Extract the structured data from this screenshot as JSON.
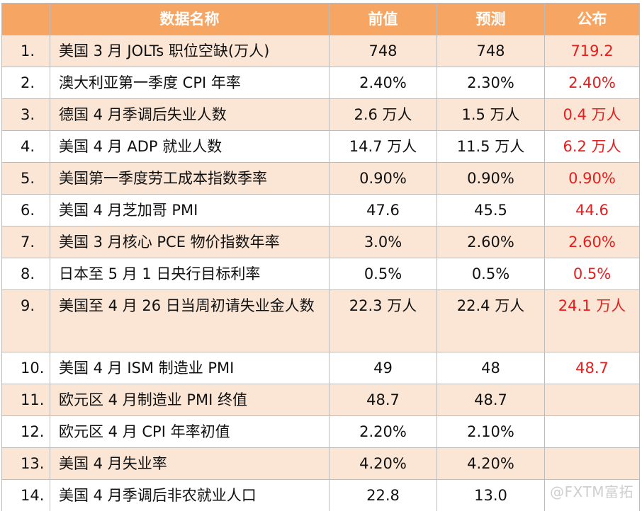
{
  "table": {
    "headers": [
      "",
      "数据名称",
      "前值",
      "预测",
      "公布"
    ],
    "rows": [
      {
        "index": "1.",
        "name": "美国 3 月 JOLTs 职位空缺(万人)",
        "previous": "748",
        "forecast": "748",
        "published": "719.2"
      },
      {
        "index": "2.",
        "name": "澳大利亚第一季度 CPI 年率",
        "previous": "2.40%",
        "forecast": "2.30%",
        "published": "2.40%"
      },
      {
        "index": "3.",
        "name": "德国 4 月季调后失业人数",
        "previous": "2.6 万人",
        "forecast": "1.5 万人",
        "published": "0.4 万人"
      },
      {
        "index": "4.",
        "name": "美国 4 月 ADP 就业人数",
        "previous": "14.7 万人",
        "forecast": "11.5 万人",
        "published": "6.2 万人"
      },
      {
        "index": "5.",
        "name": "美国第一季度劳工成本指数季率",
        "previous": "0.90%",
        "forecast": "0.90%",
        "published": "0.90%"
      },
      {
        "index": "6.",
        "name": "美国 4 月芝加哥 PMI",
        "previous": "47.6",
        "forecast": "45.5",
        "published": "44.6"
      },
      {
        "index": "7.",
        "name": "美国 3 月核心 PCE 物价指数年率",
        "previous": "3.0%",
        "forecast": "2.60%",
        "published": "2.60%"
      },
      {
        "index": "8.",
        "name": "日本至 5 月 1 日央行目标利率",
        "previous": "0.5%",
        "forecast": "0.5%",
        "published": "0.5%"
      },
      {
        "index": "9.",
        "name": "美国至 4 月 26 日当周初请失业金人数",
        "previous": "22.3 万人",
        "forecast": "22.4 万人",
        "published": "24.1 万人"
      },
      {
        "index": "10.",
        "name": "美国 4 月 ISM 制造业 PMI",
        "previous": "49",
        "forecast": "48",
        "published": "48.7"
      },
      {
        "index": "11.",
        "name": "欧元区 4 月制造业 PMI 终值",
        "previous": "48.7",
        "forecast": "48.7",
        "published": ""
      },
      {
        "index": "12.",
        "name": "欧元区 4 月 CPI 年率初值",
        "previous": "2.20%",
        "forecast": "2.10%",
        "published": ""
      },
      {
        "index": "13.",
        "name": "美国 4 月失业率",
        "previous": "4.20%",
        "forecast": "4.20%",
        "published": ""
      },
      {
        "index": "14.",
        "name": "美国 4 月季调后非农就业人口",
        "previous": "22.8",
        "forecast": "13.0",
        "published": ""
      }
    ]
  },
  "watermark": "@FXTM富拓",
  "colors": {
    "header_bg": "#f6a563",
    "odd_row_bg": "#fbe6d6",
    "published_text": "#e81d1d"
  }
}
